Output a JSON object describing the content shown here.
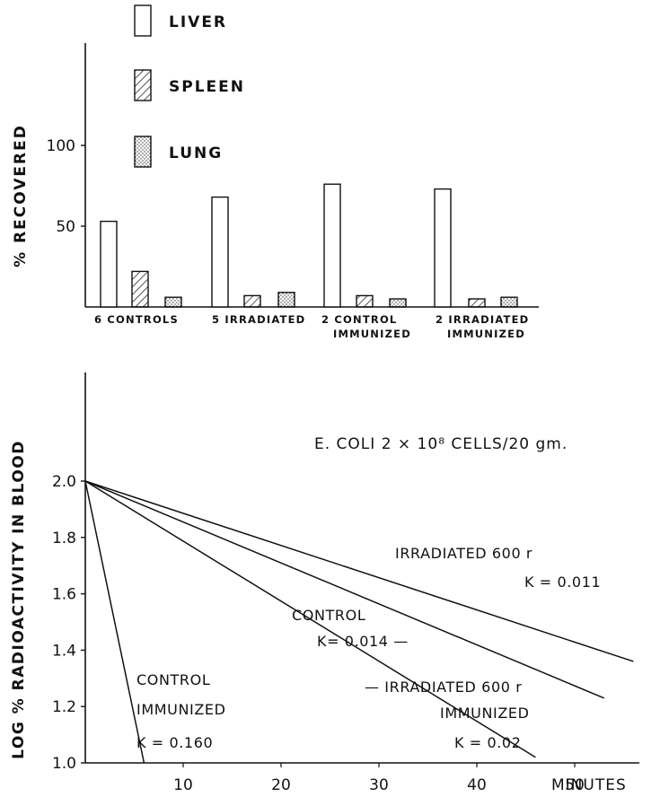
{
  "chart_data": [
    {
      "type": "bar",
      "ylabel": "% RECOVERED",
      "y_ticks": [
        "50",
        "100"
      ],
      "ylim": [
        0,
        170
      ],
      "legend": [
        {
          "name": "LIVER",
          "pattern": "open"
        },
        {
          "name": "SPLEEN",
          "pattern": "hatched"
        },
        {
          "name": "LUNG",
          "pattern": "dotted"
        }
      ],
      "legend_position": "top-left",
      "groups": [
        {
          "label_lines": [
            "6  CONTROLS"
          ]
        },
        {
          "label_lines": [
            "5 IRRADIATED"
          ]
        },
        {
          "label_lines": [
            "2  CONTROL",
            "IMMUNIZED"
          ]
        },
        {
          "label_lines": [
            "2  IRRADIATED",
            "IMMUNIZED"
          ]
        }
      ],
      "series": [
        {
          "name": "LIVER",
          "values": [
            53,
            68,
            76,
            73
          ]
        },
        {
          "name": "SPLEEN",
          "values": [
            22,
            7,
            7,
            5
          ]
        },
        {
          "name": "LUNG",
          "values": [
            6,
            9,
            5,
            6
          ]
        }
      ]
    },
    {
      "type": "line",
      "title": "E. COLI   2 × 10⁸ CELLS/20 gm.",
      "xlabel": "MINUTES",
      "ylabel": "LOG % RADIOACTIVITY IN BLOOD",
      "x_ticks": [
        "10",
        "20",
        "30",
        "40",
        "50"
      ],
      "y_ticks": [
        "1.0",
        "1.2",
        "1.4",
        "1.6",
        "1.8",
        "2.0"
      ],
      "xlim": [
        0,
        62
      ],
      "ylim": [
        1.0,
        2.2
      ],
      "lines": [
        {
          "id": "control-immunized",
          "label_lines": [
            "CONTROL",
            "IMMUNIZED",
            "K = 0.160"
          ],
          "points": [
            [
              0,
              2.0
            ],
            [
              6,
              1.0
            ]
          ]
        },
        {
          "id": "irradiated-immunized",
          "label_lines": [
            "— IRRADIATED    600 r",
            "IMMUNIZED",
            "K = 0.02"
          ],
          "points": [
            [
              0,
              2.0
            ],
            [
              46,
              1.02
            ]
          ]
        },
        {
          "id": "control",
          "label_lines": [
            "CONTROL",
            "K= 0.014 —"
          ],
          "points": [
            [
              0,
              2.0
            ],
            [
              53,
              1.23
            ]
          ]
        },
        {
          "id": "irradiated-600r",
          "label_lines": [
            "IRRADIATED   600 r",
            "K = 0.011"
          ],
          "points": [
            [
              0,
              2.0
            ],
            [
              56,
              1.36
            ]
          ]
        }
      ]
    }
  ]
}
